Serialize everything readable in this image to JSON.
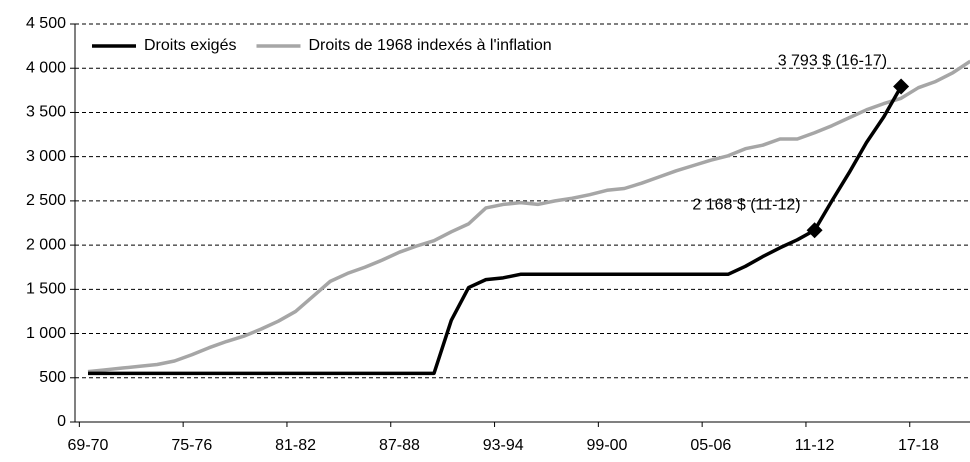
{
  "chart_data": {
    "type": "line",
    "categories": [
      "69-70",
      null,
      null,
      null,
      null,
      null,
      "75-76",
      null,
      null,
      null,
      null,
      null,
      "81-82",
      null,
      null,
      null,
      null,
      null,
      "87-88",
      null,
      null,
      null,
      null,
      null,
      "93-94",
      null,
      null,
      null,
      null,
      null,
      "99-00",
      null,
      null,
      null,
      null,
      null,
      "05-06",
      null,
      null,
      null,
      null,
      null,
      "11-12",
      null,
      null,
      null,
      null,
      null,
      "17-18",
      null,
      null,
      null
    ],
    "series": [
      {
        "name": "Droits exigés",
        "color": "#000000",
        "values": [
          550,
          550,
          550,
          550,
          550,
          550,
          550,
          550,
          550,
          550,
          550,
          550,
          550,
          550,
          550,
          550,
          550,
          550,
          550,
          550,
          550,
          1150,
          1520,
          1610,
          1630,
          1670,
          1670,
          1670,
          1670,
          1670,
          1670,
          1670,
          1670,
          1670,
          1670,
          1670,
          1670,
          1670,
          1760,
          1870,
          1970,
          2060,
          2168,
          2500,
          2820,
          3160,
          3450,
          3793,
          null,
          null,
          null,
          null
        ]
      },
      {
        "name": "Droits de 1968 indexés à l'inflation",
        "color": "#a6a6a6",
        "values": [
          570,
          590,
          610,
          630,
          650,
          690,
          760,
          840,
          910,
          970,
          1050,
          1140,
          1250,
          1420,
          1590,
          1680,
          1750,
          1830,
          1920,
          1990,
          2050,
          2150,
          2240,
          2420,
          2460,
          2480,
          2460,
          2500,
          2530,
          2570,
          2620,
          2640,
          2700,
          2770,
          2840,
          2900,
          2960,
          3010,
          3090,
          3130,
          3200,
          3200,
          3270,
          3350,
          3440,
          3530,
          3600,
          3660,
          3780,
          3850,
          3950,
          4080
        ]
      }
    ],
    "annotations": [
      {
        "label": "3 793 $ (16-17)",
        "value": 3793
      },
      {
        "label": "2 168 $ (11-12)",
        "value": 2168
      }
    ],
    "ylim": [
      0,
      4500
    ],
    "yticks": [
      0,
      500,
      {
        "value": 1000,
        "label": "1 000"
      },
      {
        "value": 1500,
        "label": "1 500"
      },
      {
        "value": 2000,
        "label": "2 000"
      },
      {
        "value": 2500,
        "label": "2 500"
      },
      {
        "value": 3000,
        "label": "3 000"
      },
      {
        "value": 3500,
        "label": "3 500"
      },
      {
        "value": 4000,
        "label": "4 000"
      },
      {
        "value": 4500,
        "label": "4 500"
      }
    ],
    "grid": true,
    "legend": "top-left"
  }
}
